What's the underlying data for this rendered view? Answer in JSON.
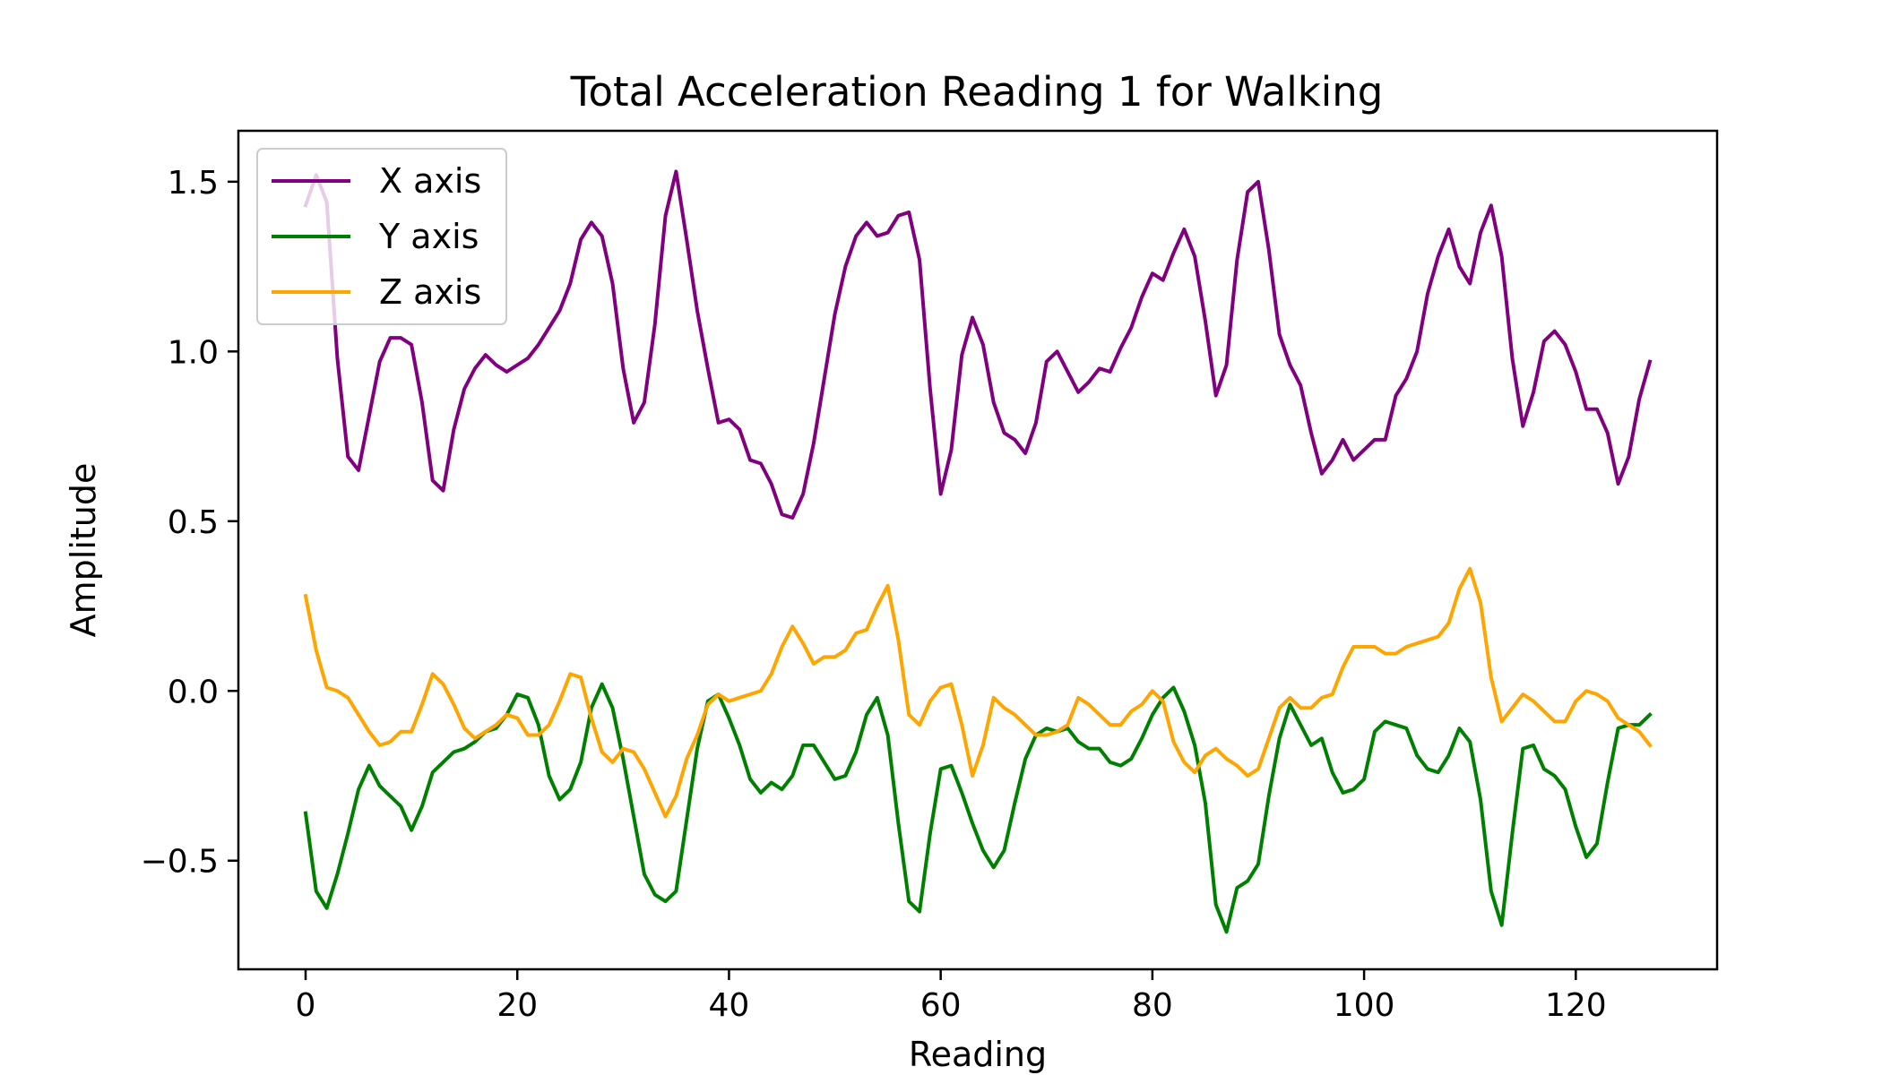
{
  "chart_data": {
    "type": "line",
    "title": "Total Acceleration Reading 1 for Walking",
    "xlabel": "Reading",
    "ylabel": "Amplitude",
    "xlim": [
      -6.35,
      133.35
    ],
    "ylim": [
      -0.82,
      1.65
    ],
    "xticks": [
      0,
      20,
      40,
      60,
      80,
      100,
      120
    ],
    "yticks": [
      -0.5,
      0.0,
      0.5,
      1.0,
      1.5
    ],
    "ytick_labels": [
      "−0.5",
      "0.0",
      "0.5",
      "1.0",
      "1.5"
    ],
    "grid": false,
    "legend_position": "top-left",
    "series": [
      {
        "name": "X axis",
        "color": "#800080",
        "values": [
          1.43,
          1.52,
          1.44,
          0.98,
          0.69,
          0.65,
          0.81,
          0.97,
          1.04,
          1.04,
          1.02,
          0.85,
          0.62,
          0.59,
          0.77,
          0.89,
          0.95,
          0.99,
          0.96,
          0.94,
          0.96,
          0.98,
          1.02,
          1.07,
          1.12,
          1.2,
          1.33,
          1.38,
          1.34,
          1.2,
          0.95,
          0.79,
          0.85,
          1.08,
          1.4,
          1.53,
          1.33,
          1.12,
          0.95,
          0.79,
          0.8,
          0.77,
          0.68,
          0.67,
          0.61,
          0.52,
          0.51,
          0.58,
          0.73,
          0.92,
          1.11,
          1.25,
          1.34,
          1.38,
          1.34,
          1.35,
          1.4,
          1.41,
          1.27,
          0.89,
          0.58,
          0.71,
          0.99,
          1.1,
          1.02,
          0.85,
          0.76,
          0.74,
          0.7,
          0.79,
          0.97,
          1.0,
          0.94,
          0.88,
          0.91,
          0.95,
          0.94,
          1.01,
          1.07,
          1.16,
          1.23,
          1.21,
          1.29,
          1.36,
          1.28,
          1.09,
          0.87,
          0.96,
          1.27,
          1.47,
          1.5,
          1.3,
          1.05,
          0.96,
          0.9,
          0.76,
          0.64,
          0.68,
          0.74,
          0.68,
          0.71,
          0.74,
          0.74,
          0.87,
          0.92,
          1.0,
          1.17,
          1.28,
          1.36,
          1.25,
          1.2,
          1.35,
          1.43,
          1.28,
          0.98,
          0.78,
          0.88,
          1.03,
          1.06,
          1.02,
          0.94,
          0.83,
          0.83,
          0.76,
          0.61,
          0.69,
          0.86,
          0.97
        ]
      },
      {
        "name": "Y axis",
        "color": "#008000",
        "values": [
          -0.36,
          -0.59,
          -0.64,
          -0.54,
          -0.42,
          -0.29,
          -0.22,
          -0.28,
          -0.31,
          -0.34,
          -0.41,
          -0.34,
          -0.24,
          -0.21,
          -0.18,
          -0.17,
          -0.15,
          -0.12,
          -0.11,
          -0.07,
          -0.01,
          -0.02,
          -0.1,
          -0.25,
          -0.32,
          -0.29,
          -0.21,
          -0.05,
          0.02,
          -0.05,
          -0.2,
          -0.37,
          -0.54,
          -0.6,
          -0.62,
          -0.59,
          -0.38,
          -0.17,
          -0.03,
          -0.01,
          -0.08,
          -0.16,
          -0.26,
          -0.3,
          -0.27,
          -0.29,
          -0.25,
          -0.16,
          -0.16,
          -0.21,
          -0.26,
          -0.25,
          -0.18,
          -0.07,
          -0.02,
          -0.13,
          -0.39,
          -0.62,
          -0.65,
          -0.42,
          -0.23,
          -0.22,
          -0.3,
          -0.39,
          -0.47,
          -0.52,
          -0.47,
          -0.33,
          -0.2,
          -0.13,
          -0.11,
          -0.12,
          -0.11,
          -0.15,
          -0.17,
          -0.17,
          -0.21,
          -0.22,
          -0.2,
          -0.14,
          -0.07,
          -0.02,
          0.01,
          -0.06,
          -0.16,
          -0.33,
          -0.63,
          -0.71,
          -0.58,
          -0.56,
          -0.51,
          -0.31,
          -0.14,
          -0.04,
          -0.1,
          -0.16,
          -0.14,
          -0.24,
          -0.3,
          -0.29,
          -0.26,
          -0.12,
          -0.09,
          -0.1,
          -0.11,
          -0.19,
          -0.23,
          -0.24,
          -0.19,
          -0.11,
          -0.15,
          -0.32,
          -0.59,
          -0.69,
          -0.42,
          -0.17,
          -0.16,
          -0.23,
          -0.25,
          -0.29,
          -0.4,
          -0.49,
          -0.45,
          -0.27,
          -0.11,
          -0.1,
          -0.1,
          -0.07
        ]
      },
      {
        "name": "Z axis",
        "color": "#FFA500",
        "values": [
          0.28,
          0.12,
          0.01,
          0.0,
          -0.02,
          -0.07,
          -0.12,
          -0.16,
          -0.15,
          -0.12,
          -0.12,
          -0.04,
          0.05,
          0.02,
          -0.04,
          -0.11,
          -0.14,
          -0.12,
          -0.1,
          -0.07,
          -0.08,
          -0.13,
          -0.13,
          -0.1,
          -0.03,
          0.05,
          0.04,
          -0.08,
          -0.18,
          -0.21,
          -0.17,
          -0.18,
          -0.23,
          -0.3,
          -0.37,
          -0.31,
          -0.2,
          -0.13,
          -0.04,
          -0.01,
          -0.03,
          -0.02,
          -0.01,
          0.0,
          0.05,
          0.13,
          0.19,
          0.14,
          0.08,
          0.1,
          0.1,
          0.12,
          0.17,
          0.18,
          0.25,
          0.31,
          0.15,
          -0.07,
          -0.1,
          -0.03,
          0.01,
          0.02,
          -0.1,
          -0.25,
          -0.16,
          -0.02,
          -0.05,
          -0.07,
          -0.1,
          -0.13,
          -0.13,
          -0.12,
          -0.1,
          -0.02,
          -0.04,
          -0.07,
          -0.1,
          -0.1,
          -0.06,
          -0.04,
          0.0,
          -0.03,
          -0.15,
          -0.21,
          -0.24,
          -0.19,
          -0.17,
          -0.2,
          -0.22,
          -0.25,
          -0.23,
          -0.14,
          -0.05,
          -0.02,
          -0.05,
          -0.05,
          -0.02,
          -0.01,
          0.07,
          0.13,
          0.13,
          0.13,
          0.11,
          0.11,
          0.13,
          0.14,
          0.15,
          0.16,
          0.2,
          0.3,
          0.36,
          0.26,
          0.04,
          -0.09,
          -0.05,
          -0.01,
          -0.03,
          -0.06,
          -0.09,
          -0.09,
          -0.03,
          0.0,
          -0.01,
          -0.03,
          -0.08,
          -0.1,
          -0.12,
          -0.16
        ]
      }
    ]
  }
}
